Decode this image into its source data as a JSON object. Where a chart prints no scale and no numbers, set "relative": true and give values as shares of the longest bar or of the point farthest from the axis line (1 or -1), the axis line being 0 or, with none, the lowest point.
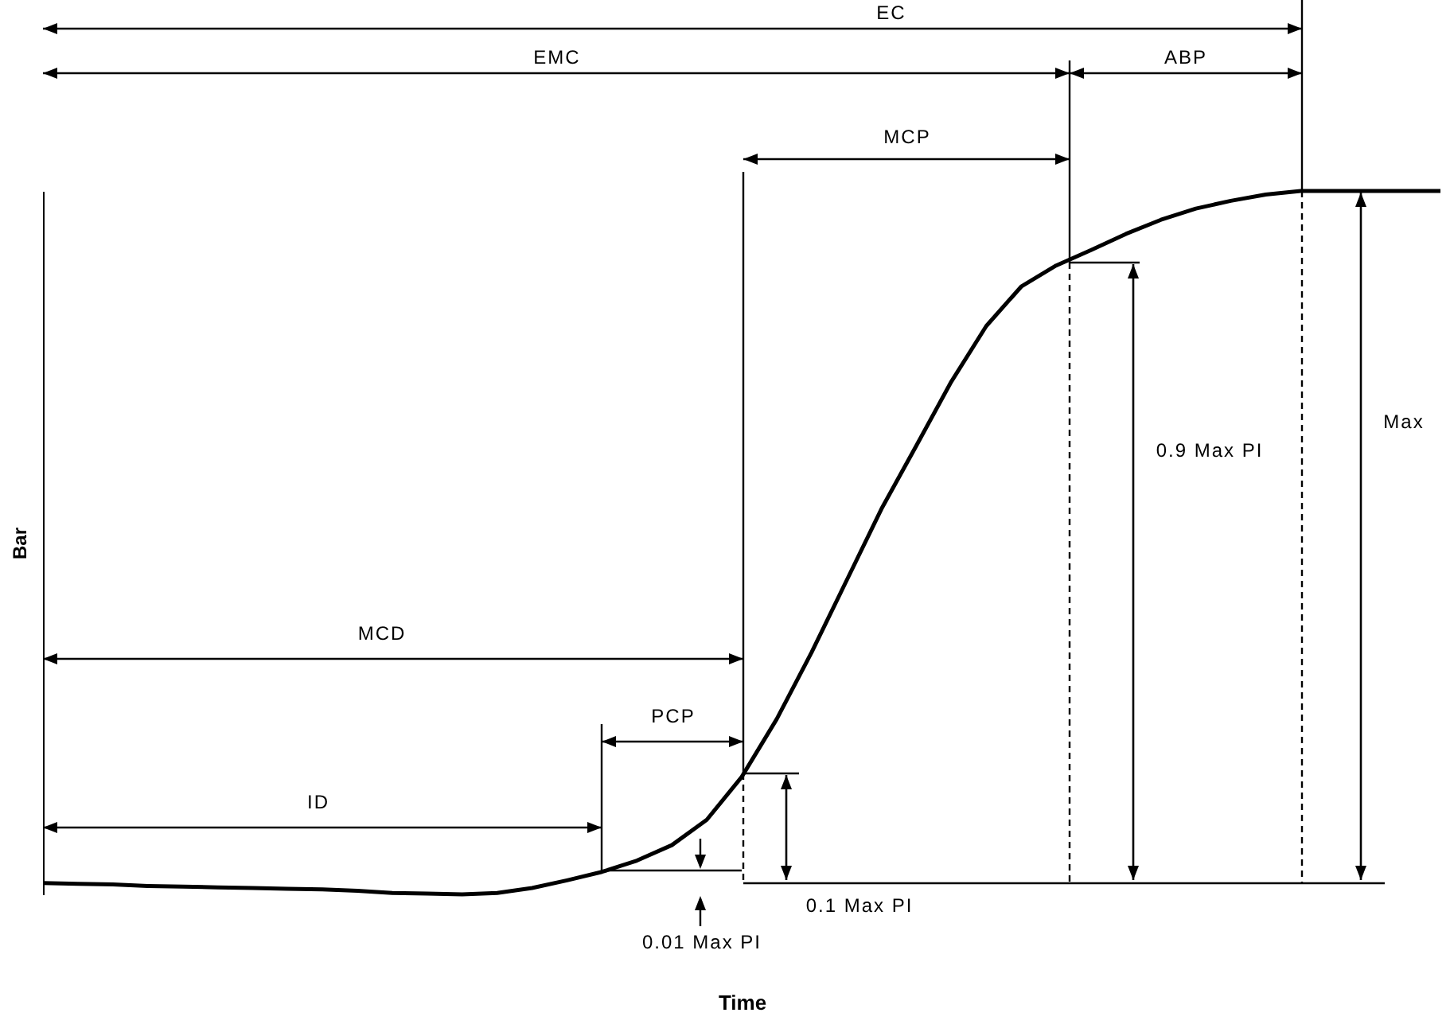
{
  "chart_data": {
    "type": "line",
    "relative": true,
    "xlabel": "Time",
    "ylabel": "Bar",
    "color": "#000000",
    "grid": false,
    "categories": [
      null,
      null,
      null,
      null,
      null,
      null,
      null,
      null,
      null,
      null,
      null,
      null,
      null,
      null,
      null,
      null,
      null,
      null,
      null,
      null,
      null,
      null,
      null,
      null,
      null,
      null,
      null,
      null,
      null,
      null,
      null,
      null,
      null,
      null,
      null,
      null,
      null,
      null,
      null,
      null,
      null
    ],
    "values": [
      0.016,
      0.015,
      0.014,
      0.012,
      0.011,
      0.01,
      0.009,
      0.008,
      0.007,
      0.005,
      0.002,
      0.001,
      0,
      0.002,
      0.009,
      0.02,
      0.032,
      0.048,
      0.07,
      0.106,
      0.167,
      0.249,
      0.344,
      0.446,
      0.548,
      0.638,
      0.729,
      0.808,
      0.864,
      0.894,
      0.916,
      0.939,
      0.959,
      0.975,
      0.986,
      0.995,
      1,
      1,
      1,
      1,
      1
    ],
    "annotations": [
      "EC",
      "EMC",
      "ABP",
      "MCP",
      "MCD",
      "PCP",
      "ID",
      "0.9 Max PI",
      "Max",
      "0.1 Max PI",
      "0.01 Max PI"
    ]
  }
}
